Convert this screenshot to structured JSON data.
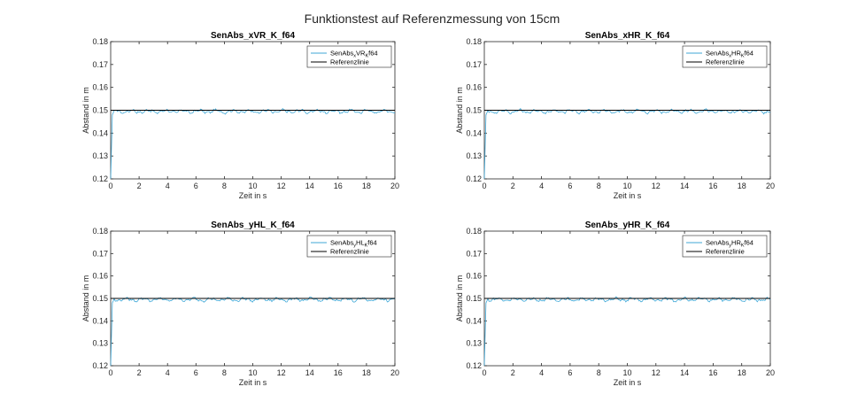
{
  "figure": {
    "title": "Funktionstest auf Referenzmessung von 15cm"
  },
  "colors": {
    "series": "#3fa7d6",
    "reference": "#000000",
    "axis": "#262626",
    "background": "#ffffff"
  },
  "chart_data": [
    {
      "type": "line",
      "title": "SenAbs_xVR_K_f64",
      "xlabel": "Zeit in s",
      "ylabel": "Abstand in m",
      "xlim": [
        0,
        20
      ],
      "ylim": [
        0.12,
        0.18
      ],
      "xticks": [
        "0",
        "2",
        "4",
        "6",
        "8",
        "10",
        "12",
        "14",
        "16",
        "18",
        "20"
      ],
      "yticks": [
        "0.12",
        "0.13",
        "0.14",
        "0.15",
        "0.16",
        "0.17",
        "0.18"
      ],
      "grid": false,
      "legend_placement": "top-right",
      "legend": {
        "main": "SenAbs",
        "sub1": "x",
        "mid": "VR",
        "sub2": "K",
        "end": "f64",
        "ref": "Referenzlinie"
      },
      "series": [
        {
          "kind": "measurement",
          "start": {
            "x": 0.0,
            "y": 0.12
          },
          "mean": 0.1495,
          "amplitude": 0.0009,
          "x_range": [
            0,
            20
          ]
        },
        {
          "kind": "reference",
          "values": [
            [
              0,
              0.15
            ],
            [
              20,
              0.15
            ]
          ]
        }
      ]
    },
    {
      "type": "line",
      "title": "SenAbs_xHR_K_f64",
      "xlabel": "Zeit in s",
      "ylabel": "Abstand in m",
      "xlim": [
        0,
        20
      ],
      "ylim": [
        0.12,
        0.18
      ],
      "xticks": [
        "0",
        "2",
        "4",
        "6",
        "8",
        "10",
        "12",
        "14",
        "16",
        "18",
        "20"
      ],
      "yticks": [
        "0.12",
        "0.13",
        "0.14",
        "0.15",
        "0.16",
        "0.17",
        "0.18"
      ],
      "grid": false,
      "legend_placement": "top-right",
      "legend": {
        "main": "SenAbs",
        "sub1": "x",
        "mid": "HR",
        "sub2": "K",
        "end": "f64",
        "ref": "Referenzlinie"
      },
      "series": [
        {
          "kind": "measurement",
          "start": {
            "x": 0.0,
            "y": 0.12
          },
          "mean": 0.1495,
          "amplitude": 0.0009,
          "x_range": [
            0,
            20
          ]
        },
        {
          "kind": "reference",
          "values": [
            [
              0,
              0.15
            ],
            [
              20,
              0.15
            ]
          ]
        }
      ]
    },
    {
      "type": "line",
      "title": "SenAbs_yHL_K_f64",
      "xlabel": "Zeit in s",
      "ylabel": "Abstand in m",
      "xlim": [
        0,
        20
      ],
      "ylim": [
        0.12,
        0.18
      ],
      "xticks": [
        "0",
        "2",
        "4",
        "6",
        "8",
        "10",
        "12",
        "14",
        "16",
        "18",
        "20"
      ],
      "yticks": [
        "0.12",
        "0.13",
        "0.14",
        "0.15",
        "0.16",
        "0.17",
        "0.18"
      ],
      "grid": false,
      "legend_placement": "top-right",
      "legend": {
        "main": "SenAbs",
        "sub1": "y",
        "mid": "HL",
        "sub2": "K",
        "end": "f64",
        "ref": "Referenzlinie"
      },
      "series": [
        {
          "kind": "measurement",
          "start": {
            "x": 0.0,
            "y": 0.12
          },
          "mean": 0.1495,
          "amplitude": 0.0009,
          "x_range": [
            0,
            20
          ]
        },
        {
          "kind": "reference",
          "values": [
            [
              0,
              0.15
            ],
            [
              20,
              0.15
            ]
          ]
        }
      ]
    },
    {
      "type": "line",
      "title": "SenAbs_yHR_K_f64",
      "xlabel": "Zeit in s",
      "ylabel": "Abstand in m",
      "xlim": [
        0,
        20
      ],
      "ylim": [
        0.12,
        0.18
      ],
      "xticks": [
        "0",
        "2",
        "4",
        "6",
        "8",
        "10",
        "12",
        "14",
        "16",
        "18",
        "20"
      ],
      "yticks": [
        "0.12",
        "0.13",
        "0.14",
        "0.15",
        "0.16",
        "0.17",
        "0.18"
      ],
      "grid": false,
      "legend_placement": "top-right",
      "legend": {
        "main": "SenAbs",
        "sub1": "y",
        "mid": "HR",
        "sub2": "K",
        "end": "f64",
        "ref": "Referenzlinie"
      },
      "series": [
        {
          "kind": "measurement",
          "start": {
            "x": 0.0,
            "y": 0.12
          },
          "mean": 0.1495,
          "amplitude": 0.0009,
          "x_range": [
            0,
            20
          ]
        },
        {
          "kind": "reference",
          "values": [
            [
              0,
              0.15
            ],
            [
              20,
              0.15
            ]
          ]
        }
      ]
    }
  ]
}
